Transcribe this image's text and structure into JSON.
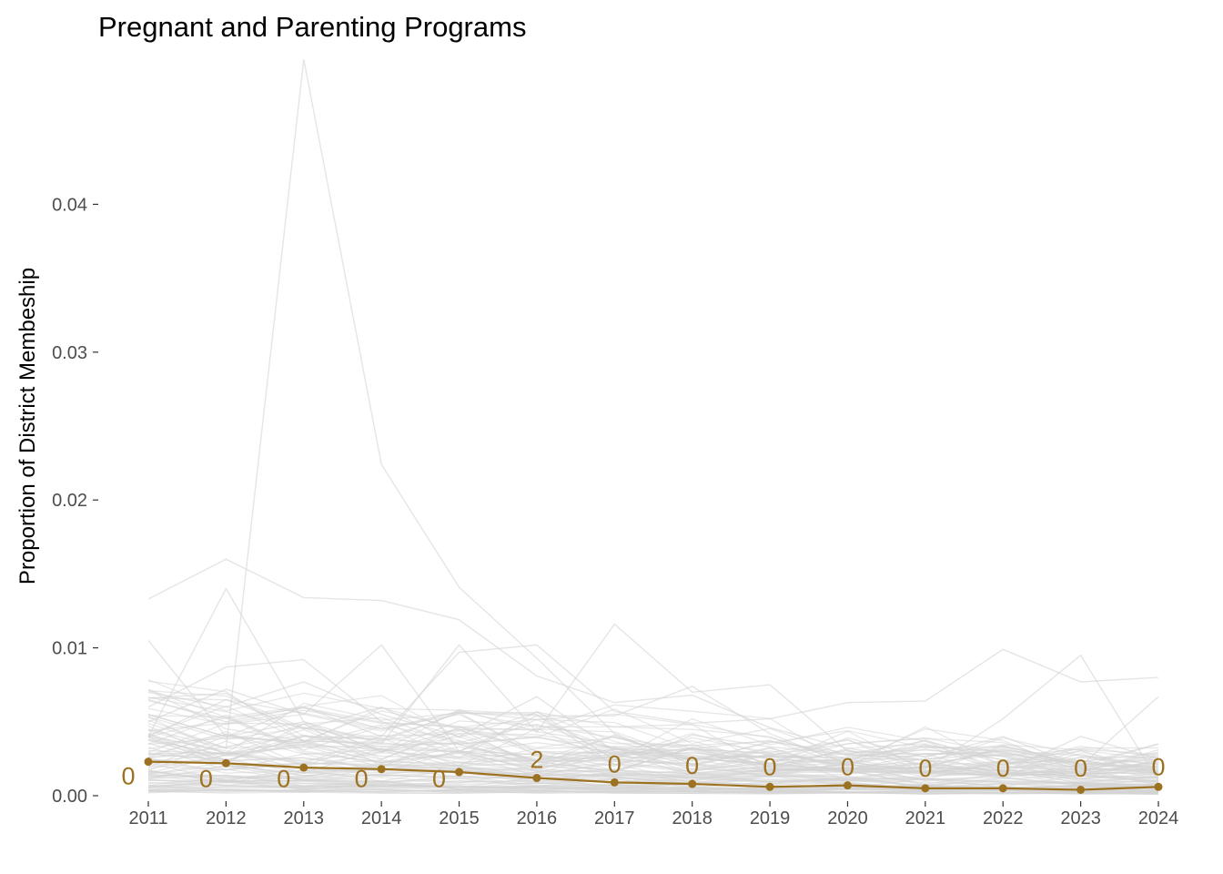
{
  "chart_data": {
    "type": "line",
    "title": "Pregnant and Parenting Programs",
    "xlabel": "",
    "ylabel": "Proportion of District Membeship",
    "x": [
      2011,
      2012,
      2013,
      2014,
      2015,
      2016,
      2017,
      2018,
      2019,
      2020,
      2021,
      2022,
      2023,
      2024
    ],
    "xticks": [
      "2011",
      "2012",
      "2013",
      "2014",
      "2015",
      "2016",
      "2017",
      "2018",
      "2019",
      "2020",
      "2021",
      "2022",
      "2023",
      "2024"
    ],
    "yticks": [
      "0.00",
      "0.01",
      "0.02",
      "0.03",
      "0.04"
    ],
    "ylim": [
      0,
      0.05
    ],
    "grid": false,
    "legend": "none",
    "highlight_color": "#9c7221",
    "background_color": "#d3d3d3",
    "highlight": {
      "values": [
        0.0023,
        0.0022,
        0.0019,
        0.0018,
        0.0016,
        0.0012,
        0.0009,
        0.0008,
        0.0006,
        0.0007,
        0.0005,
        0.0005,
        0.0004,
        0.0006
      ],
      "labels": [
        "0",
        "0",
        "0",
        "0",
        "0",
        "2",
        "0",
        "0",
        "0",
        "0",
        "0",
        "0",
        "0",
        "0"
      ],
      "label_values": [
        0.0014,
        0.0012,
        0.0012,
        0.0012,
        0.0012,
        0.0025,
        0.0022,
        0.0021,
        0.002,
        0.002,
        0.0019,
        0.0019,
        0.0019,
        0.002
      ]
    },
    "background_series": [
      [
        0.0133,
        0.016,
        0.0134,
        0.0132,
        0.0119,
        0.0081,
        0.0063,
        0.0068,
        0.0046,
        0.0032,
        0.0024,
        0.0019,
        0.0018,
        0.0017
      ],
      [
        0.0045,
        0.0032,
        0.0498,
        0.0224,
        0.0141,
        0.0093,
        0.0042,
        0.0021,
        0.0016,
        0.0012,
        0.0011,
        0.001,
        0.0009,
        0.001
      ],
      [
        0.0105,
        0.004,
        0.006,
        0.004,
        0.0097,
        0.0102,
        0.0057,
        0.0049,
        0.0052,
        0.0063,
        0.0064,
        0.0099,
        0.0077,
        0.008
      ],
      [
        0.006,
        0.0087,
        0.0092,
        0.005,
        0.003,
        0.0054,
        0.0054,
        0.0074,
        0.0042,
        0.0021,
        0.0018,
        0.0052,
        0.0095,
        0.001
      ],
      [
        0.004,
        0.014,
        0.005,
        0.0035,
        0.0102,
        0.0043,
        0.0116,
        0.007,
        0.0075,
        0.003,
        0.0028,
        0.003,
        0.002,
        0.0067
      ],
      [
        0.007,
        0.006,
        0.0077,
        0.0055,
        0.004,
        0.0067,
        0.003,
        0.0025,
        0.0022,
        0.0039,
        0.0026,
        0.004,
        0.002,
        0.0035
      ],
      [
        0.005,
        0.0072,
        0.0055,
        0.0102,
        0.003,
        0.0028,
        0.002,
        0.0041,
        0.0033,
        0.0028,
        0.0037,
        0.0016,
        0.004,
        0.0025
      ],
      [
        0.0065,
        0.005,
        0.006,
        0.0045,
        0.0055,
        0.003,
        0.0025,
        0.002,
        0.0032,
        0.0018,
        0.0025,
        0.0028,
        0.0016,
        0.0031
      ],
      [
        0.004,
        0.0065,
        0.0045,
        0.006,
        0.0035,
        0.004,
        0.0028,
        0.0032,
        0.002,
        0.0025,
        0.0016,
        0.0022,
        0.0024,
        0.0016
      ],
      [
        0.0055,
        0.004,
        0.005,
        0.003,
        0.0045,
        0.002,
        0.0032,
        0.0018,
        0.0028,
        0.0015,
        0.0022,
        0.0016,
        0.0015,
        0.0022
      ]
    ]
  }
}
